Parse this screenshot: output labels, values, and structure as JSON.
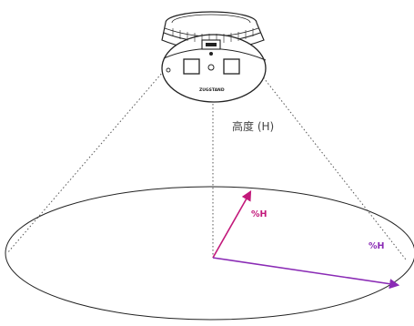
{
  "labels": {
    "height": "高度 (H)",
    "radius_inner": "%H",
    "radius_outer": "%H",
    "brand": "ZUGSTAND"
  },
  "colors": {
    "line": "#222222",
    "dotted": "#555555",
    "magenta": "#c2187a",
    "purple": "#8a2bb5",
    "label_gray": "#444444"
  },
  "icons": {
    "sensor": "ceiling-sensor-device-icon"
  }
}
